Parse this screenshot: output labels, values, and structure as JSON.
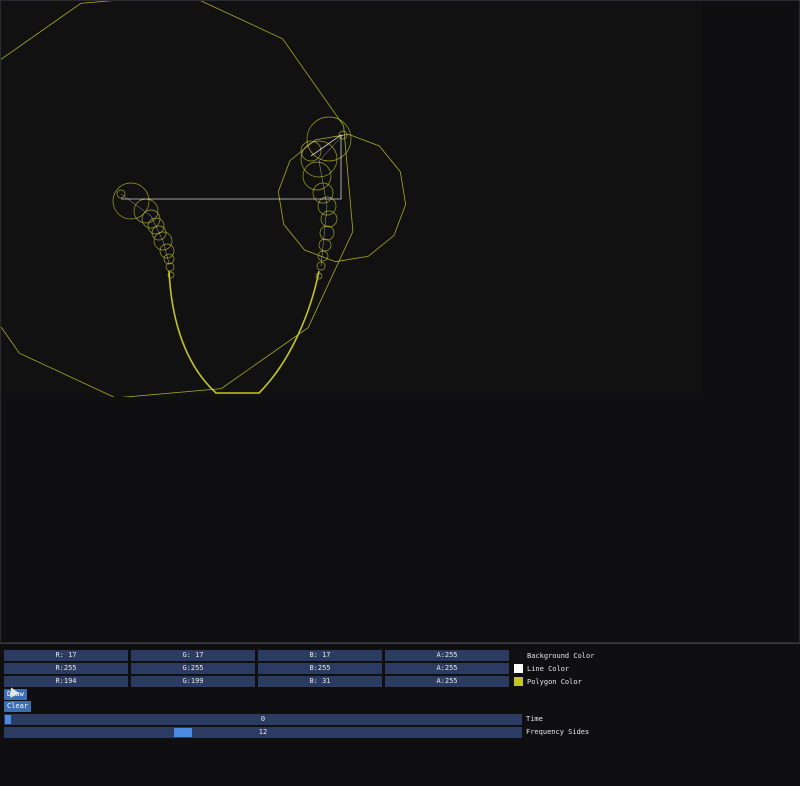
{
  "colors": {
    "background_swatch": "#111111",
    "line_swatch": "#ffffff",
    "polygon_swatch": "#c2c71f",
    "field_bg": "#2b3b61",
    "accent": "#4a8ae0"
  },
  "color_rows": [
    {
      "r": "R: 17",
      "g": "G: 17",
      "b": "B: 17",
      "a": "A:255",
      "label": "Background Color"
    },
    {
      "r": "R:255",
      "g": "G:255",
      "b": "B:255",
      "a": "A:255",
      "label": "Line Color"
    },
    {
      "r": "R:194",
      "g": "G:199",
      "b": "B: 31",
      "a": "A:255",
      "label": "Polygon Color"
    }
  ],
  "buttons": {
    "draw": "Draw",
    "clear": "Clear"
  },
  "sliders": {
    "time": {
      "value": "0",
      "label": "Time",
      "fraction": 0.0
    },
    "frequency_sides": {
      "value": "12",
      "label": "Frequency Sides",
      "fraction": 0.34
    }
  }
}
